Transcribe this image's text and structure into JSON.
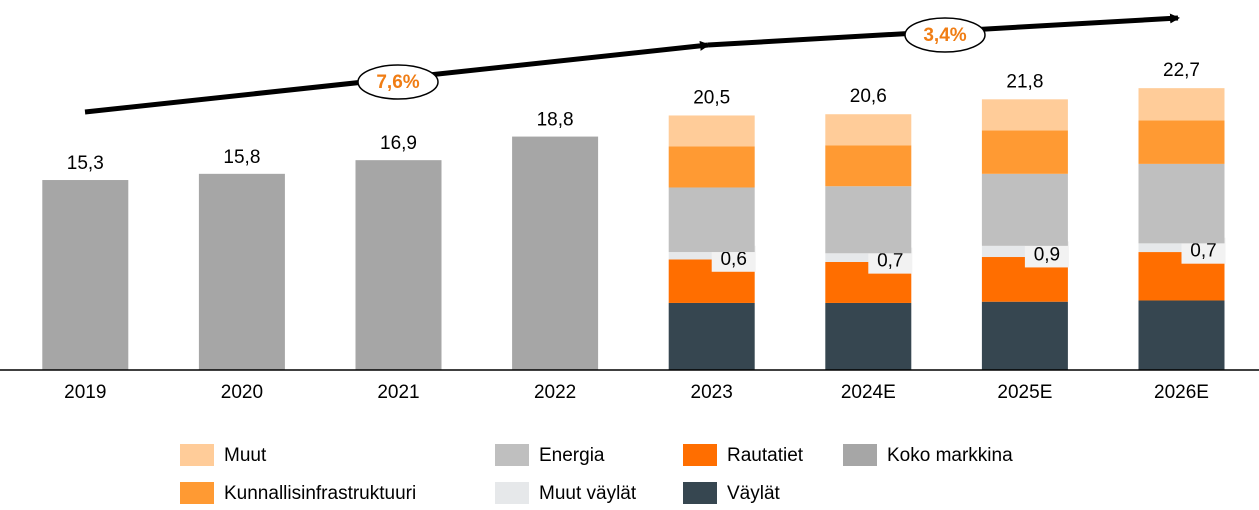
{
  "chart_data": {
    "type": "stacked_bar",
    "categories": [
      "2019",
      "2020",
      "2021",
      "2022",
      "2023",
      "2024E",
      "2025E",
      "2026E"
    ],
    "series": [
      {
        "name": "Väylät",
        "color": "#364650",
        "values": [
          null,
          null,
          null,
          null,
          5.4,
          5.4,
          5.5,
          5.6
        ]
      },
      {
        "name": "Rautatiet",
        "color": "#ff6e00",
        "values": [
          null,
          null,
          null,
          null,
          3.5,
          3.3,
          3.6,
          3.9
        ]
      },
      {
        "name": "Muut väylät",
        "color": "#e6e8ea",
        "values": [
          null,
          null,
          null,
          null,
          0.6,
          0.7,
          0.9,
          0.7
        ],
        "value_labels": [
          null,
          null,
          null,
          null,
          "0,6",
          "0,7",
          "0,9",
          "0,7"
        ]
      },
      {
        "name": "Energia",
        "color": "#bfbfbf",
        "values": [
          null,
          null,
          null,
          null,
          5.2,
          5.4,
          5.8,
          6.4
        ]
      },
      {
        "name": "Kunnallisinfrastruktuuri",
        "color": "#ff9a33",
        "values": [
          null,
          null,
          null,
          null,
          3.3,
          3.3,
          3.5,
          3.5
        ]
      },
      {
        "name": "Muut",
        "color": "#ffcc99",
        "values": [
          null,
          null,
          null,
          null,
          2.5,
          2.5,
          2.5,
          2.6
        ]
      },
      {
        "name": "Koko markkina",
        "color": "#a6a6a6",
        "values": [
          15.3,
          15.8,
          16.9,
          18.8,
          null,
          null,
          null,
          null
        ],
        "value_labels": [
          "15,3",
          "15,8",
          "16,9",
          "18,8",
          null,
          null,
          null,
          null
        ]
      }
    ],
    "totals": [
      null,
      null,
      null,
      null,
      20.5,
      20.6,
      21.8,
      22.7
    ],
    "total_labels": [
      null,
      null,
      null,
      null,
      "20,5",
      "20,6",
      "21,8",
      "22,7"
    ],
    "annotations": [
      "7,6%",
      "3,4%"
    ],
    "ylim": [
      0,
      29.8
    ]
  }
}
